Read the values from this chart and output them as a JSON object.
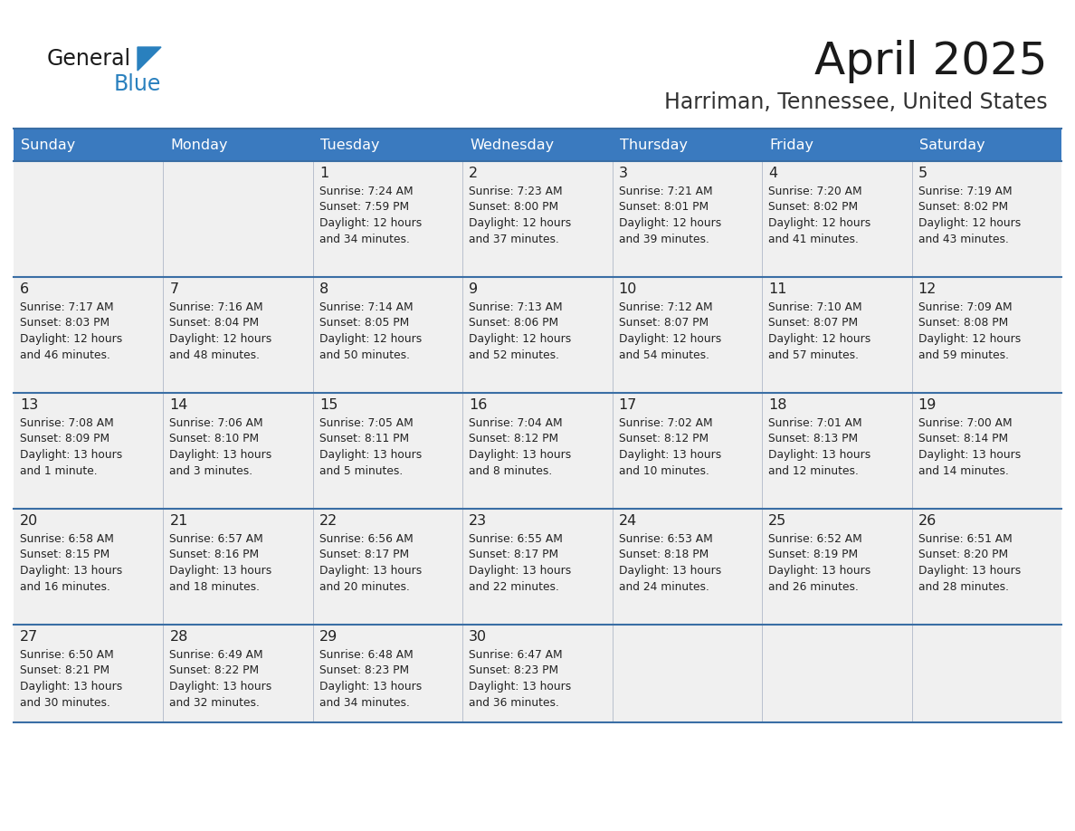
{
  "title": "April 2025",
  "subtitle": "Harriman, Tennessee, United States",
  "days_of_week": [
    "Sunday",
    "Monday",
    "Tuesday",
    "Wednesday",
    "Thursday",
    "Friday",
    "Saturday"
  ],
  "header_bg": "#3a7abf",
  "header_text_color": "#ffffff",
  "row_bg": "#f0f0f0",
  "cell_text_color": "#222222",
  "border_color": "#3a6ea5",
  "title_color": "#1a1a1a",
  "subtitle_color": "#333333",
  "logo_general_color": "#1a1a1a",
  "logo_blue_color": "#2980be",
  "weeks": [
    [
      {
        "day": "",
        "info": ""
      },
      {
        "day": "",
        "info": ""
      },
      {
        "day": "1",
        "info": "Sunrise: 7:24 AM\nSunset: 7:59 PM\nDaylight: 12 hours\nand 34 minutes."
      },
      {
        "day": "2",
        "info": "Sunrise: 7:23 AM\nSunset: 8:00 PM\nDaylight: 12 hours\nand 37 minutes."
      },
      {
        "day": "3",
        "info": "Sunrise: 7:21 AM\nSunset: 8:01 PM\nDaylight: 12 hours\nand 39 minutes."
      },
      {
        "day": "4",
        "info": "Sunrise: 7:20 AM\nSunset: 8:02 PM\nDaylight: 12 hours\nand 41 minutes."
      },
      {
        "day": "5",
        "info": "Sunrise: 7:19 AM\nSunset: 8:02 PM\nDaylight: 12 hours\nand 43 minutes."
      }
    ],
    [
      {
        "day": "6",
        "info": "Sunrise: 7:17 AM\nSunset: 8:03 PM\nDaylight: 12 hours\nand 46 minutes."
      },
      {
        "day": "7",
        "info": "Sunrise: 7:16 AM\nSunset: 8:04 PM\nDaylight: 12 hours\nand 48 minutes."
      },
      {
        "day": "8",
        "info": "Sunrise: 7:14 AM\nSunset: 8:05 PM\nDaylight: 12 hours\nand 50 minutes."
      },
      {
        "day": "9",
        "info": "Sunrise: 7:13 AM\nSunset: 8:06 PM\nDaylight: 12 hours\nand 52 minutes."
      },
      {
        "day": "10",
        "info": "Sunrise: 7:12 AM\nSunset: 8:07 PM\nDaylight: 12 hours\nand 54 minutes."
      },
      {
        "day": "11",
        "info": "Sunrise: 7:10 AM\nSunset: 8:07 PM\nDaylight: 12 hours\nand 57 minutes."
      },
      {
        "day": "12",
        "info": "Sunrise: 7:09 AM\nSunset: 8:08 PM\nDaylight: 12 hours\nand 59 minutes."
      }
    ],
    [
      {
        "day": "13",
        "info": "Sunrise: 7:08 AM\nSunset: 8:09 PM\nDaylight: 13 hours\nand 1 minute."
      },
      {
        "day": "14",
        "info": "Sunrise: 7:06 AM\nSunset: 8:10 PM\nDaylight: 13 hours\nand 3 minutes."
      },
      {
        "day": "15",
        "info": "Sunrise: 7:05 AM\nSunset: 8:11 PM\nDaylight: 13 hours\nand 5 minutes."
      },
      {
        "day": "16",
        "info": "Sunrise: 7:04 AM\nSunset: 8:12 PM\nDaylight: 13 hours\nand 8 minutes."
      },
      {
        "day": "17",
        "info": "Sunrise: 7:02 AM\nSunset: 8:12 PM\nDaylight: 13 hours\nand 10 minutes."
      },
      {
        "day": "18",
        "info": "Sunrise: 7:01 AM\nSunset: 8:13 PM\nDaylight: 13 hours\nand 12 minutes."
      },
      {
        "day": "19",
        "info": "Sunrise: 7:00 AM\nSunset: 8:14 PM\nDaylight: 13 hours\nand 14 minutes."
      }
    ],
    [
      {
        "day": "20",
        "info": "Sunrise: 6:58 AM\nSunset: 8:15 PM\nDaylight: 13 hours\nand 16 minutes."
      },
      {
        "day": "21",
        "info": "Sunrise: 6:57 AM\nSunset: 8:16 PM\nDaylight: 13 hours\nand 18 minutes."
      },
      {
        "day": "22",
        "info": "Sunrise: 6:56 AM\nSunset: 8:17 PM\nDaylight: 13 hours\nand 20 minutes."
      },
      {
        "day": "23",
        "info": "Sunrise: 6:55 AM\nSunset: 8:17 PM\nDaylight: 13 hours\nand 22 minutes."
      },
      {
        "day": "24",
        "info": "Sunrise: 6:53 AM\nSunset: 8:18 PM\nDaylight: 13 hours\nand 24 minutes."
      },
      {
        "day": "25",
        "info": "Sunrise: 6:52 AM\nSunset: 8:19 PM\nDaylight: 13 hours\nand 26 minutes."
      },
      {
        "day": "26",
        "info": "Sunrise: 6:51 AM\nSunset: 8:20 PM\nDaylight: 13 hours\nand 28 minutes."
      }
    ],
    [
      {
        "day": "27",
        "info": "Sunrise: 6:50 AM\nSunset: 8:21 PM\nDaylight: 13 hours\nand 30 minutes."
      },
      {
        "day": "28",
        "info": "Sunrise: 6:49 AM\nSunset: 8:22 PM\nDaylight: 13 hours\nand 32 minutes."
      },
      {
        "day": "29",
        "info": "Sunrise: 6:48 AM\nSunset: 8:23 PM\nDaylight: 13 hours\nand 34 minutes."
      },
      {
        "day": "30",
        "info": "Sunrise: 6:47 AM\nSunset: 8:23 PM\nDaylight: 13 hours\nand 36 minutes."
      },
      {
        "day": "",
        "info": ""
      },
      {
        "day": "",
        "info": ""
      },
      {
        "day": "",
        "info": ""
      }
    ]
  ]
}
